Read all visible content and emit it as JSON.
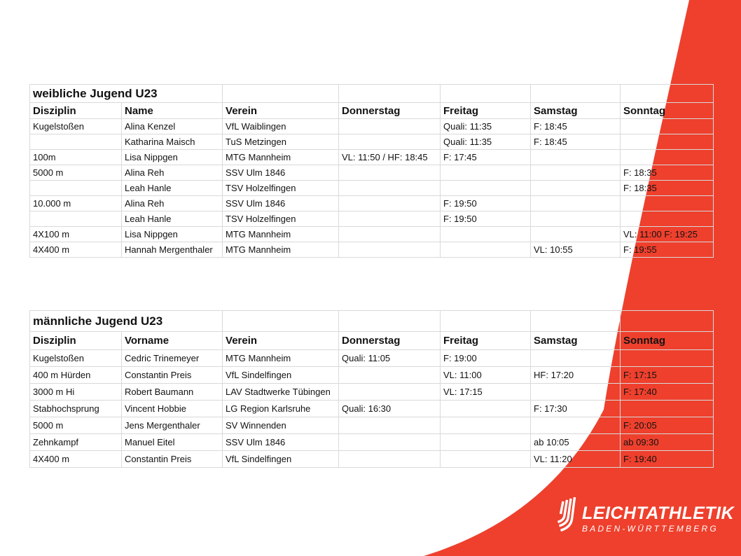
{
  "colors": {
    "red": "#ee402d",
    "gridline": "#d9d9d9",
    "text": "#121212",
    "logo_text": "#ffffff"
  },
  "logo": {
    "icon": "track-stripes-icon",
    "line1": "LEICHTATHLETIK",
    "line2": "BADEN-WÜRTTEMBERG"
  },
  "tables": [
    {
      "title": "weibliche Jugend U23",
      "columns": [
        "Disziplin",
        "Name",
        "Verein",
        "Donnerstag",
        "Freitag",
        "Samstag",
        "Sonntag"
      ],
      "rows": [
        [
          "Kugelstoßen",
          "Alina Kenzel",
          "VfL Waiblingen",
          "",
          "Quali: 11:35",
          "F: 18:45",
          ""
        ],
        [
          "",
          "Katharina Maisch",
          "TuS Metzingen",
          "",
          "Quali: 11:35",
          "F: 18:45",
          ""
        ],
        [
          "100m",
          "Lisa Nippgen",
          "MTG Mannheim",
          "VL: 11:50 / HF: 18:45",
          "F: 17:45",
          "",
          ""
        ],
        [
          "5000 m",
          "Alina Reh",
          "SSV Ulm 1846",
          "",
          "",
          "",
          "F: 18:35"
        ],
        [
          "",
          "Leah Hanle",
          "TSV Holzelfingen",
          "",
          "",
          "",
          "F: 18:35"
        ],
        [
          "10.000 m",
          "Alina Reh",
          "SSV Ulm 1846",
          "",
          "F: 19:50",
          "",
          ""
        ],
        [
          "",
          "Leah Hanle",
          "TSV Holzelfingen",
          "",
          "F: 19:50",
          "",
          ""
        ],
        [
          "4X100 m",
          "Lisa Nippgen",
          "MTG Mannheim",
          "",
          "",
          "",
          "VL: 11:00 F: 19:25"
        ],
        [
          "4X400 m",
          "Hannah Mergenthaler",
          "MTG Mannheim",
          "",
          "",
          "VL: 10:55",
          "F: 19:55"
        ]
      ]
    },
    {
      "title": "männliche Jugend U23",
      "columns": [
        "Disziplin",
        "Vorname",
        "Verein",
        "Donnerstag",
        "Freitag",
        "Samstag",
        "Sonntag"
      ],
      "rows": [
        [
          "Kugelstoßen",
          "Cedric Trinemeyer",
          "MTG Mannheim",
          "Quali: 11:05",
          "F: 19:00",
          "",
          ""
        ],
        [
          "400 m Hürden",
          "Constantin Preis",
          "VfL Sindelfingen",
          "",
          "VL: 11:00",
          "HF: 17:20",
          "F: 17:15"
        ],
        [
          "3000 m Hi",
          "Robert Baumann",
          "LAV Stadtwerke Tübingen",
          "",
          "VL: 17:15",
          "",
          "F: 17:40"
        ],
        [
          "Stabhochsprung",
          "Vincent Hobbie",
          "LG Region Karlsruhe",
          "Quali: 16:30",
          "",
          "F: 17:30",
          ""
        ],
        [
          "5000 m",
          "Jens Mergenthaler",
          "SV Winnenden",
          "",
          "",
          "",
          "F: 20:05"
        ],
        [
          "Zehnkampf",
          "Manuel Eitel",
          "SSV Ulm 1846",
          "",
          "",
          "ab 10:05",
          "ab 09:30"
        ],
        [
          "4X400 m",
          "Constantin Preis",
          "VfL Sindelfingen",
          "",
          "",
          "VL: 11:20",
          "F: 19:40"
        ]
      ]
    }
  ]
}
